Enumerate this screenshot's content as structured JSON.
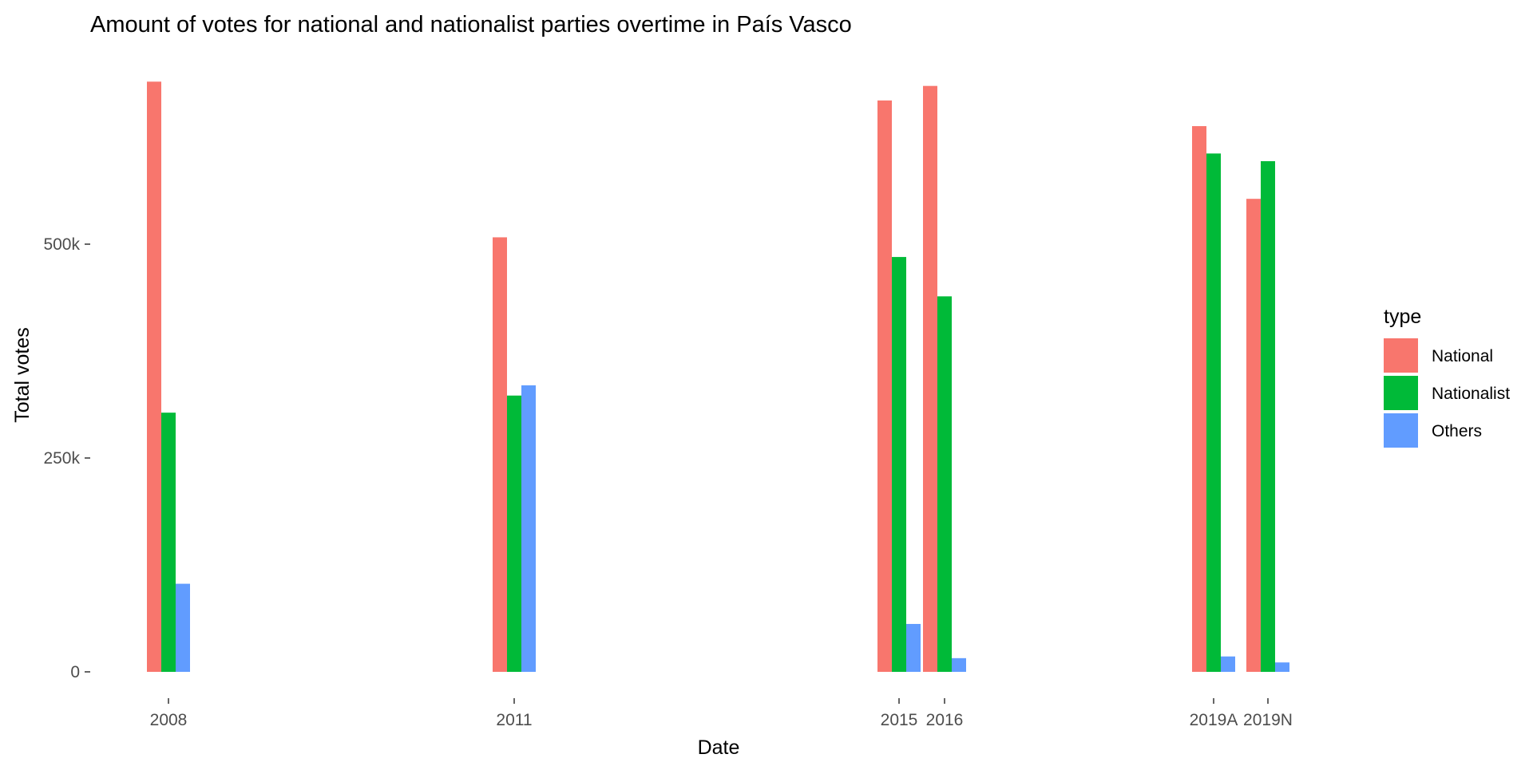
{
  "chart_data": {
    "type": "bar",
    "title": "Amount of votes for national and nationalist parties overtime in País Vasco",
    "xlabel": "Date",
    "ylabel": "Total votes",
    "categories": [
      "2008",
      "2011",
      "2015",
      "2016",
      "2019A",
      "2019N"
    ],
    "series": [
      {
        "name": "National",
        "color": "#F8766D",
        "values": [
          690000,
          508000,
          668000,
          685000,
          638000,
          553000
        ]
      },
      {
        "name": "Nationalist",
        "color": "#00BA38",
        "values": [
          303000,
          323000,
          485000,
          439000,
          606000,
          597000
        ]
      },
      {
        "name": "Others",
        "color": "#619CFF",
        "values": [
          103000,
          335000,
          56000,
          16000,
          18000,
          11000
        ]
      }
    ],
    "y_ticks": [
      {
        "value": 0,
        "label": "0"
      },
      {
        "value": 250000,
        "label": "250k"
      },
      {
        "value": 500000,
        "label": "500k"
      }
    ],
    "ylim": [
      0,
      700000
    ],
    "grid": false,
    "legend": {
      "title": "type",
      "placement": "right"
    }
  }
}
